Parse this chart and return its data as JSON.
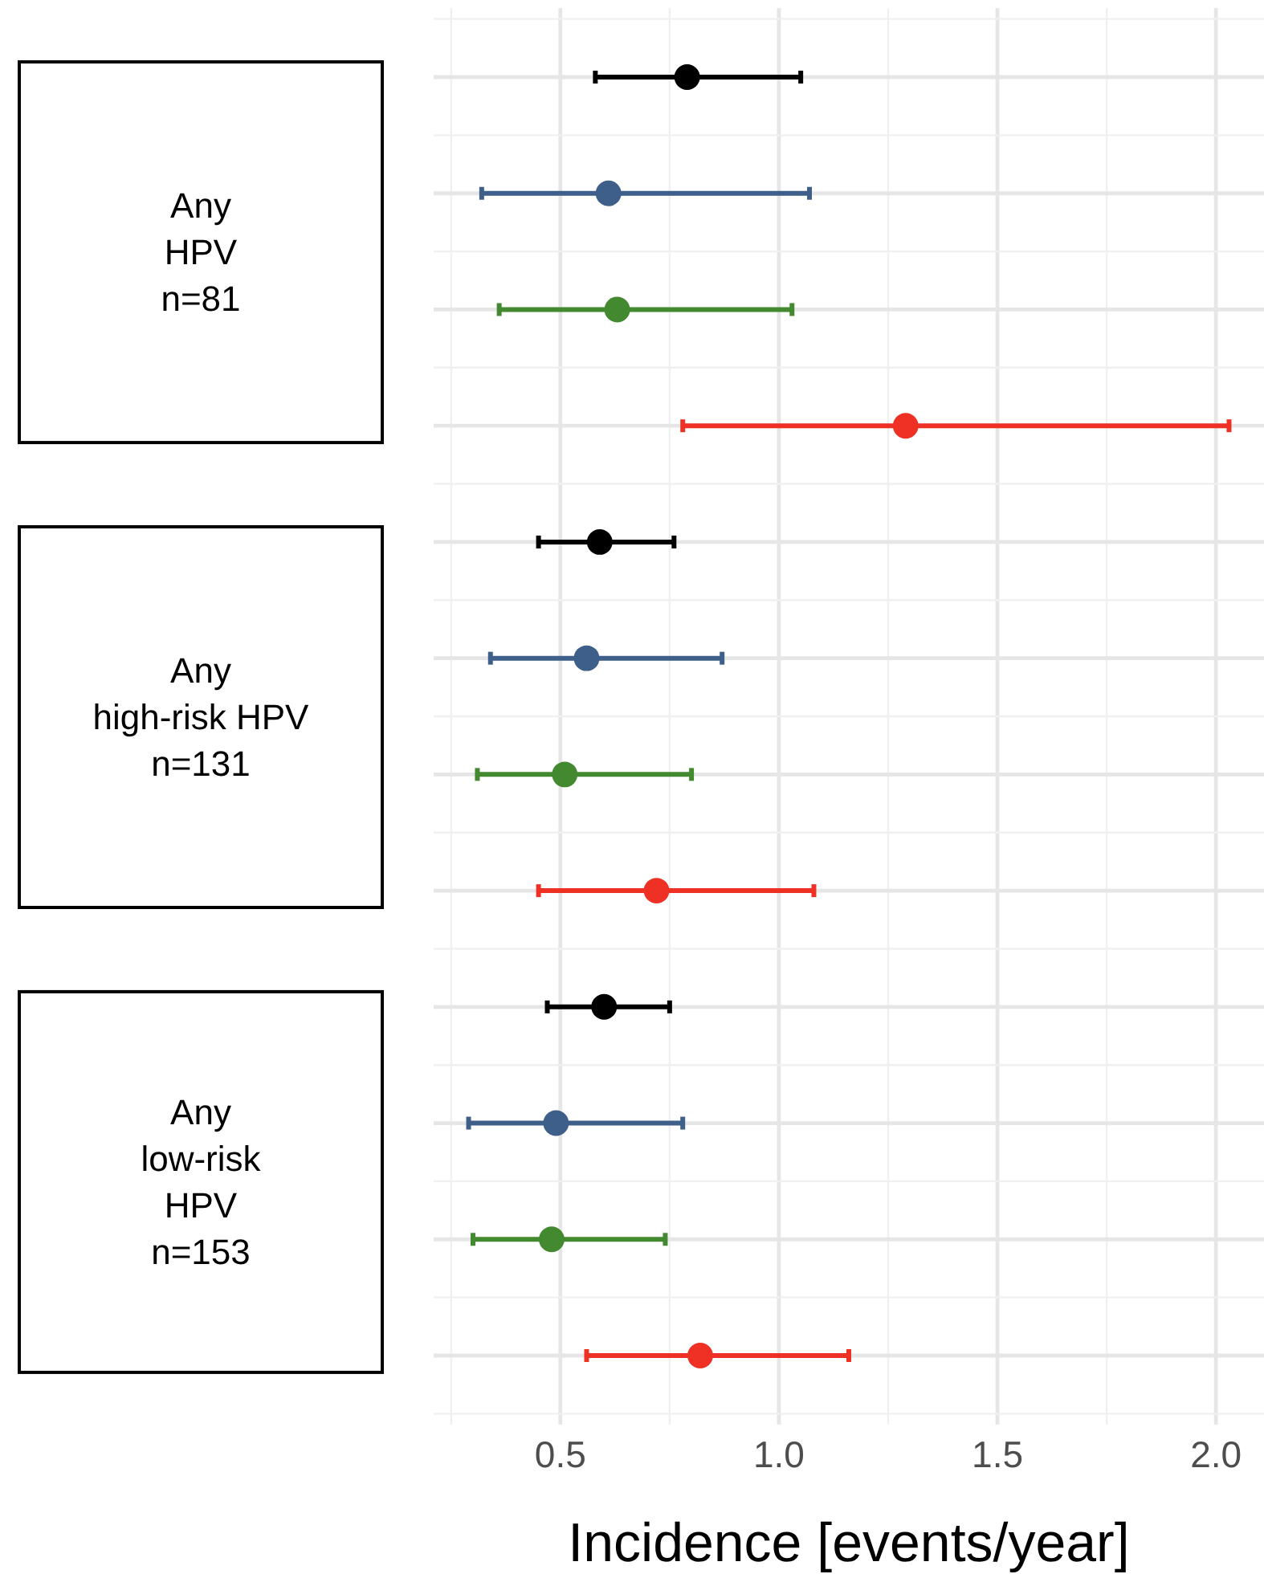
{
  "chart_data": {
    "type": "scatter",
    "orientation": "horizontal",
    "xlabel": "Incidence [events/year]",
    "categories": [
      null,
      null,
      null,
      null,
      null,
      null,
      null,
      null,
      null,
      null,
      null,
      null
    ],
    "series": [
      {
        "color": "#000000",
        "values": [
          0.79,
          null,
          null,
          null,
          0.59,
          null,
          null,
          null,
          0.6,
          null,
          null,
          null
        ],
        "errors": [
          [
            0.58,
            1.05
          ],
          null,
          null,
          null,
          [
            0.45,
            0.76
          ],
          null,
          null,
          null,
          [
            0.47,
            0.75
          ],
          null,
          null,
          null
        ]
      },
      {
        "color": "#3e5f8a",
        "values": [
          null,
          0.61,
          null,
          null,
          null,
          0.56,
          null,
          null,
          null,
          0.49,
          null,
          null
        ],
        "errors": [
          null,
          [
            0.32,
            1.07
          ],
          null,
          null,
          null,
          [
            0.34,
            0.87
          ],
          null,
          null,
          null,
          [
            0.29,
            0.78
          ],
          null,
          null
        ]
      },
      {
        "color": "#43892f",
        "values": [
          null,
          null,
          0.63,
          null,
          null,
          null,
          0.51,
          null,
          null,
          null,
          0.48,
          null
        ],
        "errors": [
          null,
          null,
          [
            0.36,
            1.03
          ],
          null,
          null,
          null,
          [
            0.31,
            0.8
          ],
          null,
          null,
          null,
          [
            0.3,
            0.74
          ],
          null
        ]
      },
      {
        "color": "#ee3124",
        "values": [
          null,
          null,
          null,
          1.29,
          null,
          null,
          null,
          0.72,
          null,
          null,
          null,
          0.82
        ],
        "errors": [
          null,
          null,
          null,
          [
            0.78,
            2.03
          ],
          null,
          null,
          null,
          [
            0.45,
            1.08
          ],
          null,
          null,
          null,
          [
            0.56,
            1.16
          ]
        ]
      }
    ],
    "xlim": [
      0.21,
      2.11
    ],
    "xticks": [
      {
        "value": 0.25,
        "label": null
      },
      {
        "value": 0.5,
        "label": "0.5"
      },
      {
        "value": 0.75,
        "label": null
      },
      {
        "value": 1,
        "label": "1.0"
      },
      {
        "value": 1.25,
        "label": null
      },
      {
        "value": 1.5,
        "label": "1.5"
      },
      {
        "value": 1.75,
        "label": null
      },
      {
        "value": 2,
        "label": "2.0"
      }
    ],
    "grid": true,
    "marker": "circle",
    "tick_labels": "x",
    "annotations": [
      "Any\nHPV\nn=81",
      "Any\nhigh-risk HPV\nn=131",
      "Any\nlow-risk\nHPV\nn=153"
    ]
  }
}
